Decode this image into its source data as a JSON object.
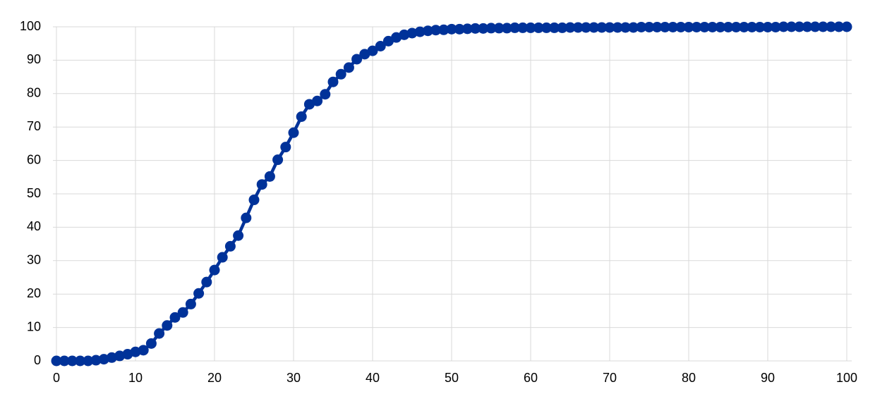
{
  "chart_data": {
    "type": "line",
    "x": [
      0,
      1,
      2,
      3,
      4,
      5,
      6,
      7,
      8,
      9,
      10,
      11,
      12,
      13,
      14,
      15,
      16,
      17,
      18,
      19,
      20,
      21,
      22,
      23,
      24,
      25,
      26,
      27,
      28,
      29,
      30,
      31,
      32,
      33,
      34,
      35,
      36,
      37,
      38,
      39,
      40,
      41,
      42,
      43,
      44,
      45,
      46,
      47,
      48,
      49,
      50,
      51,
      52,
      53,
      54,
      55,
      56,
      57,
      58,
      59,
      60,
      61,
      62,
      63,
      64,
      65,
      66,
      67,
      68,
      69,
      70,
      71,
      72,
      73,
      74,
      75,
      76,
      77,
      78,
      79,
      80,
      81,
      82,
      83,
      84,
      85,
      86,
      87,
      88,
      89,
      90,
      91,
      92,
      93,
      94,
      95,
      96,
      97,
      98,
      99,
      100
    ],
    "values": [
      0,
      0,
      0,
      0,
      0,
      0.2,
      0.5,
      1,
      1.5,
      2,
      2.7,
      3.2,
      5.2,
      8.2,
      10.6,
      13,
      14.5,
      17,
      20.2,
      23.6,
      27.2,
      31,
      34.3,
      37.5,
      42.8,
      48.2,
      52.8,
      55.2,
      60.2,
      64,
      68.3,
      73.1,
      76.8,
      77.8,
      79.8,
      83.5,
      85.8,
      87.8,
      90.3,
      91.8,
      92.8,
      94.2,
      95.7,
      96.8,
      97.6,
      98.1,
      98.5,
      98.8,
      99,
      99.1,
      99.3,
      99.3,
      99.4,
      99.5,
      99.5,
      99.6,
      99.6,
      99.6,
      99.7,
      99.7,
      99.7,
      99.7,
      99.7,
      99.7,
      99.7,
      99.8,
      99.8,
      99.8,
      99.8,
      99.8,
      99.8,
      99.8,
      99.8,
      99.8,
      99.9,
      99.9,
      99.9,
      99.9,
      99.9,
      99.9,
      99.9,
      99.9,
      99.9,
      99.9,
      99.9,
      99.9,
      99.9,
      99.9,
      99.9,
      99.9,
      99.9,
      99.9,
      100,
      100,
      100,
      100,
      100,
      100,
      100,
      100,
      100
    ],
    "color": "#003299",
    "xlim": [
      0,
      100
    ],
    "xticks": [
      0,
      10,
      20,
      30,
      40,
      50,
      60,
      70,
      80,
      90,
      100
    ],
    "ylim": [
      0,
      100
    ],
    "yticks": [
      0,
      10,
      20,
      30,
      40,
      50,
      60,
      70,
      80,
      90,
      100
    ],
    "grid": true
  }
}
